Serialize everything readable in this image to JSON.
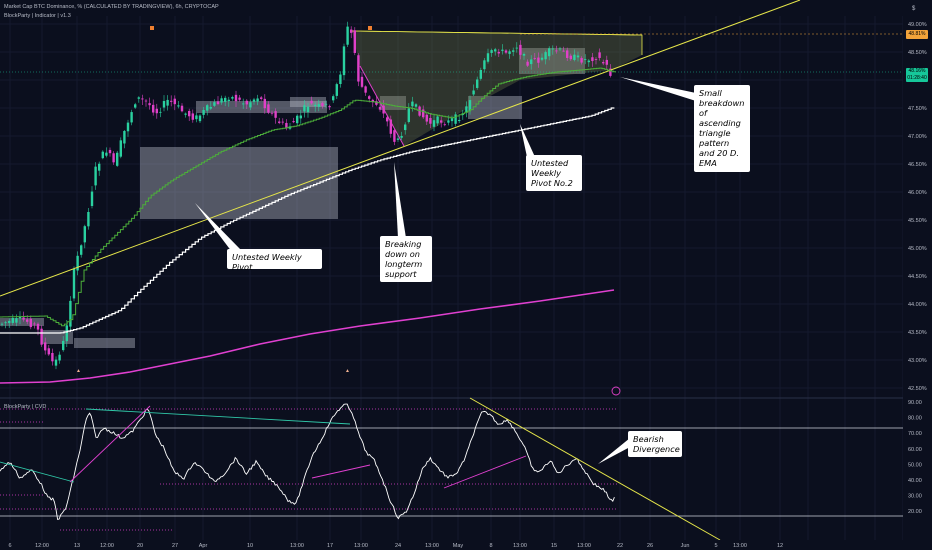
{
  "header": {
    "title": "Market Cap BTC Dominance, % (CALCULATED BY TRADINGVIEW), 6h, CRYPTOCAP",
    "indicator": "BlockParty | Indicator | v1.3"
  },
  "price_axis": {
    "corner_label": "$",
    "ticks": [
      "49.00%",
      "48.50%",
      "48.00%",
      "47.50%",
      "47.00%",
      "46.50%",
      "46.00%",
      "45.50%",
      "45.00%",
      "44.50%",
      "44.00%",
      "43.50%",
      "43.00%",
      "42.50%"
    ],
    "tag_upper": "48.81%",
    "tag_current": "48.16%",
    "tag_current_sub": "01:28:40"
  },
  "oscillator": {
    "label": "BlockParty | CVD",
    "ticks": [
      "90.00",
      "80.00",
      "70.00",
      "60.00",
      "50.00",
      "40.00",
      "30.00",
      "20.00"
    ]
  },
  "time_axis": {
    "labels": [
      "6",
      "12:00",
      "13",
      "12:00",
      "20",
      "27",
      "Apr",
      "10",
      "13:00",
      "17",
      "13:00",
      "24",
      "13:00",
      "May",
      "8",
      "13:00",
      "15",
      "13:00",
      "22",
      "26",
      "Jun",
      "5",
      "13:00",
      "12"
    ]
  },
  "annotations": {
    "weekly_pivot": "Untested Weekly Pivot",
    "breaking": "Breaking down on longterm support",
    "pivot2": "Untested Weekly Pivot No.2",
    "breakdown": "Small breakdown of ascending triangle pattern and 20 D. EMA",
    "divergence": "Bearish Divergence"
  },
  "colors": {
    "background": "#0b0f1e",
    "trendline": "#e6e64a",
    "ema_green": "#4caf3a",
    "white_line": "#ffffff",
    "magenta": "#e040d0",
    "candle_up": "#2ad1a0",
    "candle_down": "#e040c8",
    "teal_line": "#30c8a8"
  },
  "icons": [
    "alert-circle-icon"
  ]
}
